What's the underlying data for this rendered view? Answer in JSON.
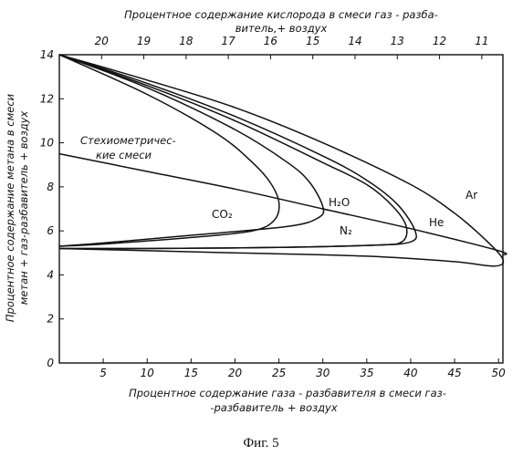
{
  "chart_data": {
    "type": "line",
    "top_axis": {
      "label_line1": "Процентное содержание кислорода в смеси газ - разба-",
      "label_line2": "витель,+ воздух",
      "ticks": [
        "20",
        "19",
        "18",
        "17",
        "16",
        "15",
        "14",
        "13",
        "12",
        "11"
      ],
      "tick_values": [
        20,
        19,
        18,
        17,
        16,
        15,
        14,
        13,
        12,
        11
      ],
      "range": [
        21,
        10.5
      ]
    },
    "xlabel_line1": "Процентное содержание газа - разбавителя в смеси газ-",
    "xlabel_line2": "-разбавитель + воздух",
    "ylabel_line1": "Процентное содержание метана в смеси",
    "ylabel_line2": "метан + газ-разбавитель + воздух",
    "xlim": [
      0,
      50.5
    ],
    "ylim": [
      0,
      14
    ],
    "x_ticks": [
      "5",
      "10",
      "15",
      "20",
      "25",
      "30",
      "35",
      "40",
      "45",
      "50"
    ],
    "x_tick_values": [
      5,
      10,
      15,
      20,
      25,
      30,
      35,
      40,
      45,
      50
    ],
    "y_ticks": [
      "0",
      "2",
      "4",
      "6",
      "8",
      "10",
      "12",
      "14"
    ],
    "y_tick_values": [
      0,
      2,
      4,
      6,
      8,
      10,
      12,
      14
    ],
    "series": [
      {
        "name": "CO2",
        "points": [
          [
            0,
            14
          ],
          [
            10,
            12.2
          ],
          [
            18,
            10.4
          ],
          [
            22,
            9.1
          ],
          [
            24,
            8.2
          ],
          [
            25,
            7.3
          ],
          [
            24.5,
            6.5
          ],
          [
            22,
            6
          ],
          [
            15,
            5.7
          ],
          [
            5,
            5.4
          ],
          [
            0,
            5.3
          ]
        ]
      },
      {
        "name": "H2O",
        "points": [
          [
            0,
            14
          ],
          [
            10,
            12.5
          ],
          [
            20,
            10.6
          ],
          [
            26,
            9.1
          ],
          [
            28.5,
            8.2
          ],
          [
            30,
            7.1
          ],
          [
            29.5,
            6.6
          ],
          [
            26,
            6.2
          ],
          [
            15,
            5.8
          ],
          [
            5,
            5.45
          ],
          [
            0,
            5.3
          ]
        ]
      },
      {
        "name": "N2",
        "points": [
          [
            0,
            14
          ],
          [
            10,
            12.6
          ],
          [
            20,
            11
          ],
          [
            30,
            9.1
          ],
          [
            35,
            8.1
          ],
          [
            38,
            7.1
          ],
          [
            39.5,
            6.2
          ],
          [
            39,
            5.5
          ],
          [
            36,
            5.35
          ],
          [
            25,
            5.25
          ],
          [
            10,
            5.2
          ],
          [
            0,
            5.2
          ]
        ]
      },
      {
        "name": "He",
        "points": [
          [
            0,
            14
          ],
          [
            10,
            12.7
          ],
          [
            20,
            11.2
          ],
          [
            30,
            9.4
          ],
          [
            35,
            8.3
          ],
          [
            38.5,
            7.2
          ],
          [
            40.5,
            6
          ],
          [
            40,
            5.5
          ],
          [
            36,
            5.35
          ],
          [
            25,
            5.25
          ],
          [
            10,
            5.2
          ],
          [
            0,
            5.2
          ]
        ]
      },
      {
        "name": "Ar",
        "points": [
          [
            0,
            14
          ],
          [
            10,
            12.85
          ],
          [
            20,
            11.6
          ],
          [
            30,
            10
          ],
          [
            40,
            8.1
          ],
          [
            45,
            6.8
          ],
          [
            48.5,
            5.6
          ],
          [
            50.5,
            4.7
          ],
          [
            49.5,
            4.4
          ],
          [
            45,
            4.6
          ],
          [
            35,
            4.85
          ],
          [
            20,
            5
          ],
          [
            10,
            5.1
          ],
          [
            0,
            5.2
          ]
        ]
      },
      {
        "name": "stoich",
        "points": [
          [
            0,
            9.5
          ],
          [
            10,
            8.7
          ],
          [
            20,
            7.9
          ],
          [
            30,
            7.0
          ],
          [
            40,
            6.1
          ],
          [
            50,
            5.1
          ],
          [
            50.5,
            4.9
          ]
        ]
      }
    ],
    "series_labels": {
      "CO2": "CO₂",
      "H2O": "H₂O",
      "N2": "N₂",
      "He": "He",
      "Ar": "Ar"
    },
    "annotation_line1": "Стехиометричес-",
    "annotation_line2": "кие смеси",
    "caption": "Фиг. 5"
  }
}
